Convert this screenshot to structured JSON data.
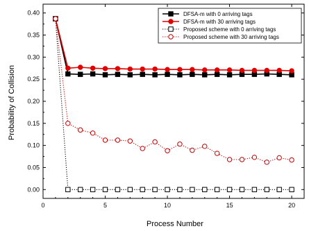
{
  "chart_data": {
    "type": "line",
    "title": "",
    "xlabel": "Process Number",
    "ylabel": "Probability of Collision",
    "xlim": [
      0,
      21
    ],
    "ylim": [
      -0.02,
      0.42
    ],
    "xticks": [
      0,
      5,
      10,
      15,
      20
    ],
    "yticks": [
      0.0,
      0.05,
      0.1,
      0.15,
      0.2,
      0.25,
      0.3,
      0.35,
      0.4
    ],
    "xtick_labels": [
      "0",
      "5",
      "10",
      "15",
      "20"
    ],
    "ytick_labels": [
      "0.00",
      "0.05",
      "0.10",
      "0.15",
      "0.20",
      "0.25",
      "0.30",
      "0.35",
      "0.40"
    ],
    "grid": false,
    "legend_position": "top-right",
    "x": [
      1,
      2,
      3,
      4,
      5,
      6,
      7,
      8,
      9,
      10,
      11,
      12,
      13,
      14,
      15,
      16,
      17,
      18,
      19,
      20
    ],
    "series": [
      {
        "name": "DFSA-m with 0 arriving tags",
        "color": "#000000",
        "line": "solid",
        "marker": "square-filled",
        "values": [
          0.387,
          0.262,
          0.261,
          0.262,
          0.26,
          0.261,
          0.26,
          0.261,
          0.26,
          0.261,
          0.26,
          0.261,
          0.26,
          0.261,
          0.26,
          0.261,
          0.261,
          0.262,
          0.261,
          0.26
        ]
      },
      {
        "name": "DFSA-m with 30 arriving tags",
        "color": "#e00000",
        "line": "solid",
        "marker": "circle-filled",
        "values": [
          0.387,
          0.275,
          0.277,
          0.275,
          0.274,
          0.274,
          0.273,
          0.273,
          0.273,
          0.272,
          0.272,
          0.272,
          0.271,
          0.271,
          0.271,
          0.27,
          0.27,
          0.27,
          0.27,
          0.269
        ]
      },
      {
        "name": "Proposed scheme with 0 arriving tags",
        "color": "#000000",
        "line": "dotted",
        "marker": "square-open",
        "values": [
          0.387,
          0.0,
          0.0,
          0.0,
          0.0,
          0.0,
          0.0,
          0.0,
          0.0,
          0.0,
          0.0,
          0.0,
          0.0,
          0.0,
          0.0,
          0.0,
          0.0,
          0.0,
          0.0,
          0.0
        ]
      },
      {
        "name": "Proposed scheme with 30 arriving tags",
        "color": "#c00000",
        "line": "dotted",
        "marker": "circle-open",
        "values": [
          0.387,
          0.15,
          0.135,
          0.128,
          0.112,
          0.112,
          0.11,
          0.093,
          0.108,
          0.088,
          0.103,
          0.089,
          0.098,
          0.082,
          0.068,
          0.068,
          0.073,
          0.062,
          0.072,
          0.067
        ]
      }
    ]
  }
}
